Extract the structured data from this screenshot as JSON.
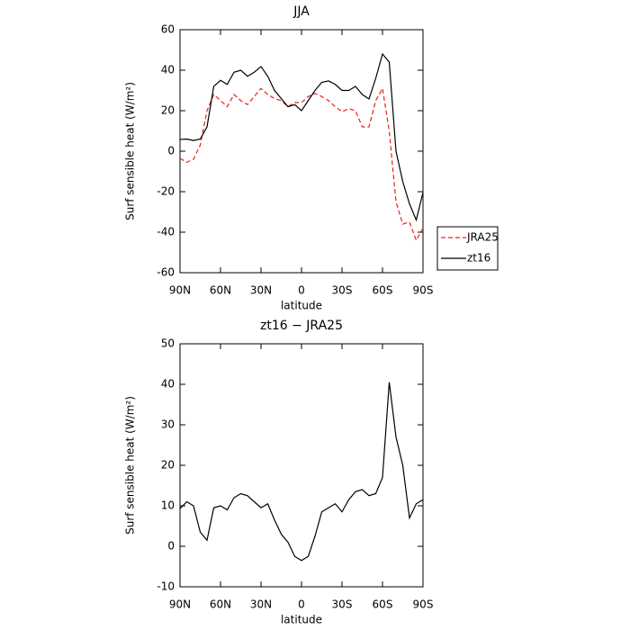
{
  "chart_data": [
    {
      "type": "line",
      "title": "JJA",
      "xlabel": "latitude",
      "ylabel": "Surf sensible heat (W/m²)",
      "x": [
        90,
        85,
        80,
        75,
        70,
        65,
        60,
        55,
        50,
        45,
        40,
        35,
        30,
        25,
        20,
        15,
        10,
        5,
        0,
        -5,
        -10,
        -15,
        -20,
        -25,
        -30,
        -35,
        -40,
        -45,
        -50,
        -55,
        -60,
        -65,
        -70,
        -75,
        -80,
        -85,
        -90
      ],
      "xlim": [
        90,
        -90
      ],
      "xticks": [
        {
          "value": 90,
          "label": "90N"
        },
        {
          "value": 60,
          "label": "60N"
        },
        {
          "value": 30,
          "label": "30N"
        },
        0,
        {
          "value": -30,
          "label": "30S"
        },
        {
          "value": -60,
          "label": "60S"
        },
        {
          "value": -90,
          "label": "90S"
        }
      ],
      "ylim": [
        -60,
        60
      ],
      "yticks": [
        -60,
        -40,
        -20,
        0,
        20,
        40,
        60
      ],
      "legend": "right",
      "series": [
        {
          "name": "JRA25",
          "color": "#e8221e",
          "style": "dashed",
          "values": [
            -3.5,
            -5.5,
            -4,
            3,
            20,
            28,
            25,
            22,
            28,
            25,
            23,
            27,
            31,
            28,
            26,
            25,
            22,
            24,
            24,
            27,
            28.5,
            27,
            25,
            22,
            19.5,
            21,
            20,
            12,
            12,
            25,
            31,
            10,
            -25,
            -36,
            -35,
            -44,
            -38
          ]
        },
        {
          "name": "zt16",
          "color": "#000000",
          "style": "solid",
          "values": [
            5.8,
            6,
            5.3,
            6,
            12,
            32,
            35,
            33,
            39,
            40,
            37,
            39,
            41.8,
            37,
            30,
            26,
            22,
            23,
            20,
            25,
            30,
            34,
            34.7,
            33,
            30,
            30,
            32,
            28,
            25.8,
            36,
            48,
            44,
            0,
            -15,
            -26,
            -34,
            -20.4
          ]
        }
      ]
    },
    {
      "type": "line",
      "title": "zt16 − JRA25",
      "xlabel": "latitude",
      "ylabel": "Surf sensible heat (W/m²)",
      "x": [
        90,
        85,
        80,
        75,
        70,
        65,
        60,
        55,
        50,
        45,
        40,
        35,
        30,
        25,
        20,
        15,
        10,
        5,
        0,
        -5,
        -10,
        -15,
        -20,
        -25,
        -30,
        -35,
        -40,
        -45,
        -50,
        -55,
        -60,
        -65,
        -70,
        -75,
        -80,
        -85,
        -90
      ],
      "xlim": [
        90,
        -90
      ],
      "xticks": [
        {
          "value": 90,
          "label": "90N"
        },
        {
          "value": 60,
          "label": "60N"
        },
        {
          "value": 30,
          "label": "30N"
        },
        0,
        {
          "value": -30,
          "label": "30S"
        },
        {
          "value": -60,
          "label": "60S"
        },
        {
          "value": -90,
          "label": "90S"
        }
      ],
      "ylim": [
        -10,
        50
      ],
      "yticks": [
        -10,
        0,
        10,
        20,
        30,
        40,
        50
      ],
      "series": [
        {
          "color": "#000000",
          "style": "solid",
          "values": [
            9.3,
            11,
            10,
            3.5,
            1.5,
            9.5,
            10,
            9,
            12,
            13,
            12.5,
            11,
            9.5,
            10.5,
            6.5,
            3,
            1,
            -2.5,
            -3.5,
            -2.5,
            2.5,
            8.5,
            9.5,
            10.5,
            8.5,
            11.5,
            13.5,
            14,
            12.5,
            13,
            17,
            40.5,
            27,
            20,
            7,
            10.5,
            11.5
          ]
        }
      ]
    }
  ]
}
